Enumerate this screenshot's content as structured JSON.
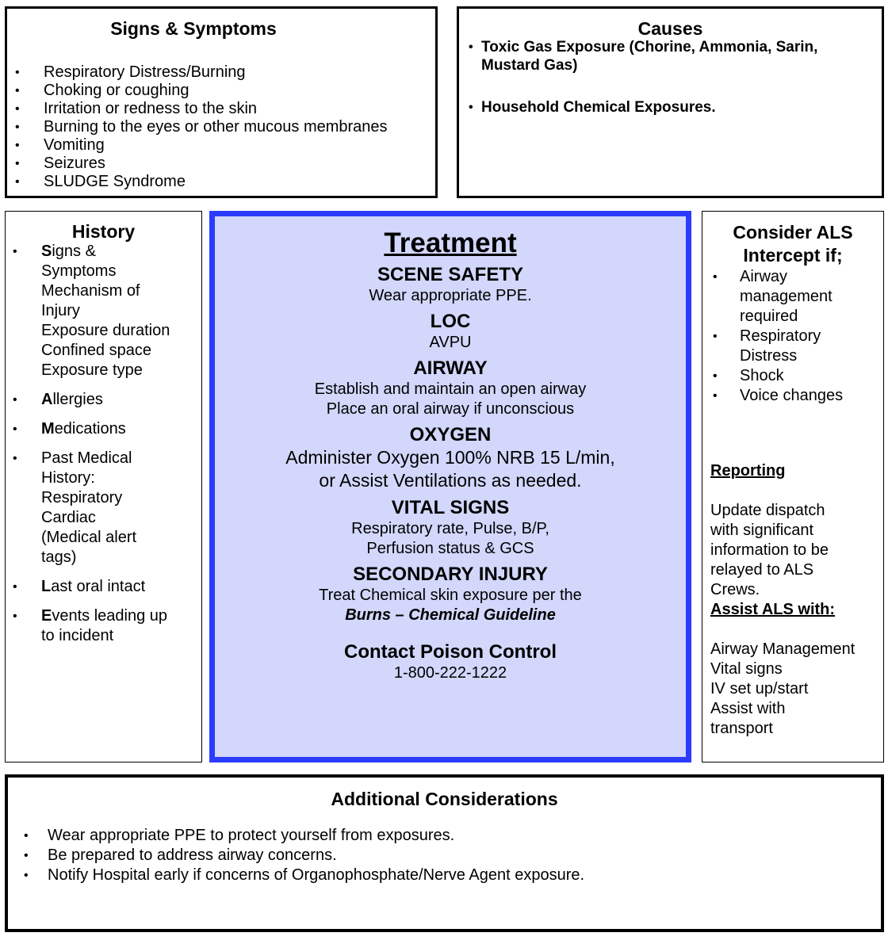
{
  "signs": {
    "title": "Signs & Symptoms",
    "items": [
      "Respiratory Distress/Burning",
      "Choking or coughing",
      "Irritation or redness to the skin",
      "Burning to the eyes or other mucous membranes",
      "Vomiting",
      "Seizures",
      "SLUDGE Syndrome"
    ]
  },
  "causes": {
    "title": "Causes",
    "items": [
      "Toxic Gas Exposure (Chorine, Ammonia, Sarin,\nMustard Gas)",
      "Household Chemical Exposures."
    ]
  },
  "history": {
    "title": "History",
    "items": [
      {
        "initial": "S",
        "rest": "igns &\nSymptoms\nMechanism of\nInjury\nExposure duration\nConfined space\nExposure type"
      },
      {
        "initial": "A",
        "rest": "llergies"
      },
      {
        "initial": "M",
        "rest": "edications"
      },
      {
        "initial": "",
        "rest": "Past Medical\nHistory:\nRespiratory\nCardiac\n (Medical alert\n  tags)"
      },
      {
        "initial": "L",
        "rest": "ast oral intact"
      },
      {
        "initial": "E",
        "rest": "vents leading up\nto incident"
      }
    ]
  },
  "treatment": {
    "title": "Treatment",
    "sections": [
      {
        "heading": "SCENE SAFETY",
        "text": "Wear appropriate PPE."
      },
      {
        "heading": "LOC",
        "text": "AVPU"
      },
      {
        "heading": "AIRWAY",
        "text": "Establish and maintain an open airway\nPlace an oral airway if unconscious"
      },
      {
        "heading": "OXYGEN",
        "text": "Administer Oxygen 100% NRB 15 L/min,\nor Assist Ventilations as needed."
      },
      {
        "heading": "VITAL SIGNS",
        "text": "Respiratory rate, Pulse, B/P,\nPerfusion status & GCS"
      },
      {
        "heading": "SECONDARY INJURY",
        "text": "Treat Chemical skin exposure per the",
        "italic": "Burns – Chemical Guideline"
      },
      {
        "heading": "Contact Poison Control",
        "text": "1-800-222-1222"
      }
    ]
  },
  "als": {
    "title": "Consider ALS Intercept if;",
    "items": [
      "Airway\nmanagement\nrequired",
      "Respiratory\nDistress",
      "Shock",
      "Voice changes"
    ],
    "reporting": {
      "heading": "Reporting",
      "text": "Update dispatch\nwith significant\ninformation to be\nrelayed to ALS\nCrews."
    },
    "assist": {
      "heading": "Assist ALS with:",
      "text": "Airway Management\nVital signs\nIV set up/start\n Assist with\ntransport"
    }
  },
  "additional": {
    "title": "Additional Considerations",
    "items": [
      "Wear appropriate PPE to protect yourself from exposures.",
      "Be prepared to address airway concerns.",
      " Notify Hospital early if concerns of Organophosphate/Nerve Agent exposure."
    ]
  },
  "colors": {
    "treatment_border": "#2b3cff",
    "treatment_fill": "#d2d7fb"
  }
}
